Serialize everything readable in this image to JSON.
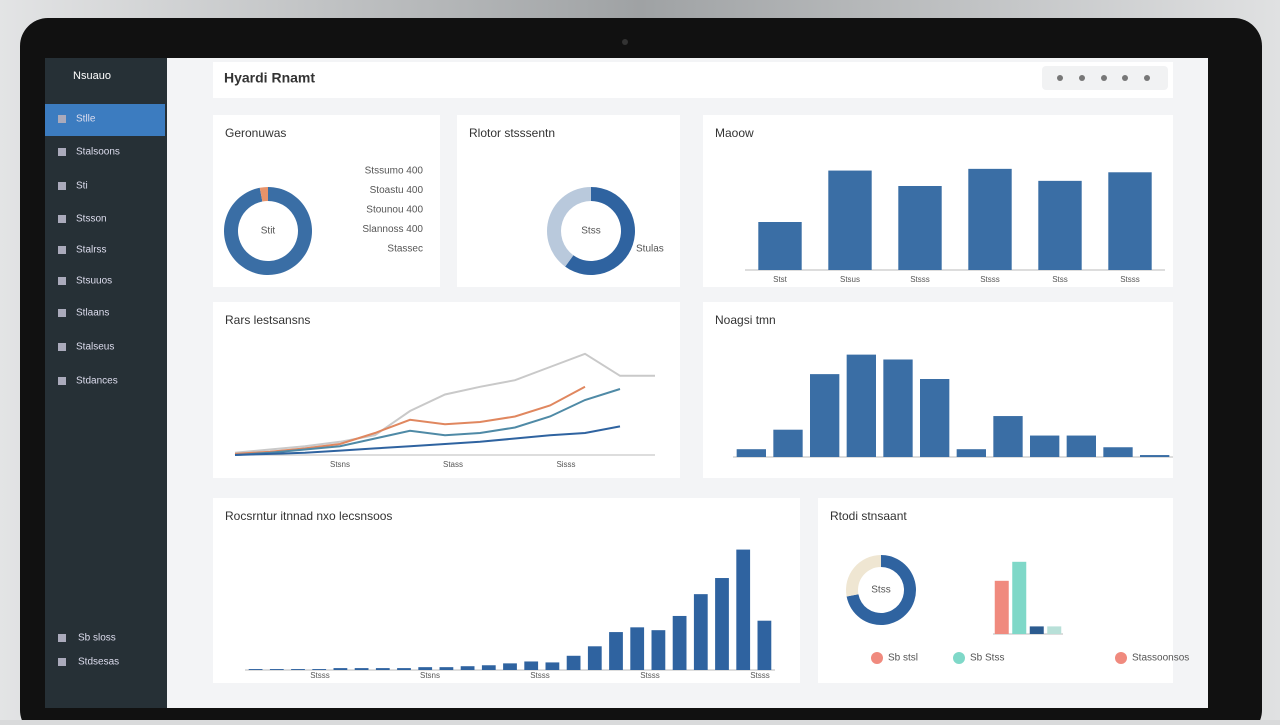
{
  "sidebar": {
    "brand": "Nsuauo",
    "items": [
      "Stlle",
      "Stalsoons",
      "Sti",
      "Stsson",
      "Stalrss",
      "Stsuuos",
      "Stlaans",
      "Stalseus",
      "Stdances"
    ],
    "footer": [
      "Sb sloss",
      "Stdsesas"
    ]
  },
  "header": {
    "title": "Hyardi Rnamt"
  },
  "donut1": {
    "title": "Geronuwas",
    "center": "Stit",
    "values": [
      97,
      3
    ],
    "colors": [
      "#3a6ea5",
      "#e8936a"
    ],
    "legend": [
      "Stssumo 400",
      "Stoastu 400",
      "Stounou 400",
      "Slannoss 400",
      "Stassec"
    ]
  },
  "donut2": {
    "title": "Rlotor stsssentn",
    "center": "Stss",
    "values": [
      60,
      40
    ],
    "colors": [
      "#2f63a0",
      "#b9c9dc"
    ],
    "legend": [
      "Stulas"
    ]
  },
  "bars1": {
    "title": "Maoow",
    "categories": [
      "Stst",
      "Stsus",
      "Stsss",
      "Stsss",
      "Stss",
      "Stsss"
    ],
    "values": [
      28,
      58,
      49,
      59,
      52,
      57
    ],
    "ylim": [
      0,
      70
    ],
    "color": "#3a6ea5"
  },
  "lines": {
    "title": "Rars lestsansns",
    "x_labels": [
      "Stsns",
      "Stass",
      "Sisss"
    ],
    "ylim": [
      0,
      100
    ],
    "series": [
      {
        "color": "#c9c9c9",
        "values": [
          2,
          5,
          8,
          12,
          18,
          40,
          55,
          62,
          68,
          80,
          92,
          72,
          72
        ]
      },
      {
        "color": "#e0875f",
        "values": [
          1,
          3,
          6,
          10,
          20,
          32,
          28,
          30,
          35,
          45,
          62,
          null,
          null
        ]
      },
      {
        "color": "#4f8aa6",
        "values": [
          0,
          2,
          5,
          8,
          15,
          22,
          18,
          20,
          25,
          35,
          50,
          60,
          null
        ]
      },
      {
        "color": "#2f63a0",
        "values": [
          0,
          1,
          2,
          4,
          6,
          8,
          10,
          12,
          15,
          18,
          20,
          26,
          null
        ]
      }
    ]
  },
  "bars2": {
    "title": "Noagsi tmn",
    "values": [
      8,
      28,
      85,
      105,
      100,
      80,
      8,
      42,
      22,
      22,
      10,
      2
    ],
    "ylim": [
      0,
      120
    ],
    "color": "#3a6ea5"
  },
  "bars3": {
    "title": "Rocsrntur itnnad nxo lecsnsoos",
    "x_labels": [
      "Stsss",
      "Stsns",
      "Stsss",
      "Stsss",
      "Stsss"
    ],
    "values": [
      1,
      1,
      1,
      1,
      2,
      2,
      2,
      2,
      3,
      3,
      4,
      5,
      7,
      9,
      8,
      15,
      25,
      40,
      45,
      42,
      57,
      80,
      97,
      127,
      52
    ],
    "ylim": [
      0,
      135
    ],
    "color": "#2f63a0"
  },
  "small": {
    "title": "Rtodi stnsaant",
    "center": "Stss",
    "donut": [
      72,
      28
    ],
    "donut_colors": [
      "#2f63a0",
      "#efe6d2"
    ],
    "bars": [
      70,
      95,
      10,
      10
    ],
    "bar_colors": [
      "#f08a7e",
      "#7fd8c8",
      "#2c5b8f",
      "#b8e0d8"
    ],
    "ylim": [
      0,
      100
    ],
    "legend": [
      "Sb stsl",
      "Sb Stss",
      "Stassoonsos"
    ]
  }
}
